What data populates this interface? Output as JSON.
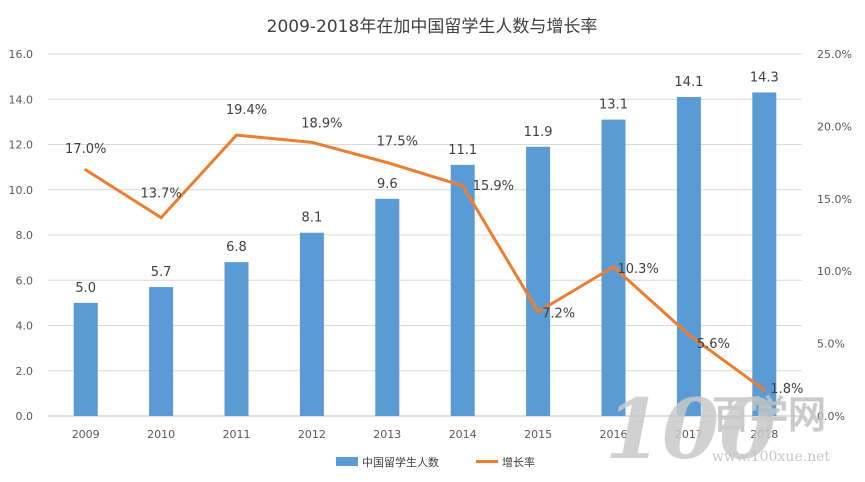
{
  "chart_data": {
    "type": "bar",
    "title": "2009-2018年在加中国留学生人数与增长率",
    "categories": [
      "2009",
      "2010",
      "2011",
      "2012",
      "2013",
      "2014",
      "2015",
      "2016",
      "2017",
      "2018"
    ],
    "series": [
      {
        "name": "中国留学生人数",
        "type": "bar",
        "axis": "left",
        "color": "#5b9bd5",
        "values": [
          5.0,
          5.7,
          6.8,
          8.1,
          9.6,
          11.1,
          11.9,
          13.1,
          14.1,
          14.3
        ],
        "labels": [
          "5.0",
          "5.7",
          "6.8",
          "8.1",
          "9.6",
          "11.1",
          "11.9",
          "13.1",
          "14.1",
          "14.3"
        ]
      },
      {
        "name": "增长率",
        "type": "line",
        "axis": "right",
        "color": "#ed7d31",
        "values": [
          17.0,
          13.7,
          19.4,
          18.9,
          17.5,
          15.9,
          7.2,
          10.3,
          5.6,
          1.8
        ],
        "labels": [
          "17.0%",
          "13.7%",
          "19.4%",
          "18.9%",
          "17.5%",
          "15.9%",
          "7.2%",
          "10.3%",
          "5.6%",
          "1.8%"
        ]
      }
    ],
    "y_left": {
      "lim": [
        0,
        16
      ],
      "ticks": [
        "0.0",
        "2.0",
        "4.0",
        "6.0",
        "8.0",
        "10.0",
        "12.0",
        "14.0",
        "16.0"
      ]
    },
    "y_right": {
      "lim": [
        0,
        25
      ],
      "ticks": [
        "0.0%",
        "5.0%",
        "10.0%",
        "15.0%",
        "20.0%",
        "25.0%"
      ]
    },
    "grid": true,
    "legend_position": "bottom"
  },
  "watermark": {
    "logo_text": "100",
    "brand_text": "百学网",
    "url_text": "www.100xue.net"
  }
}
